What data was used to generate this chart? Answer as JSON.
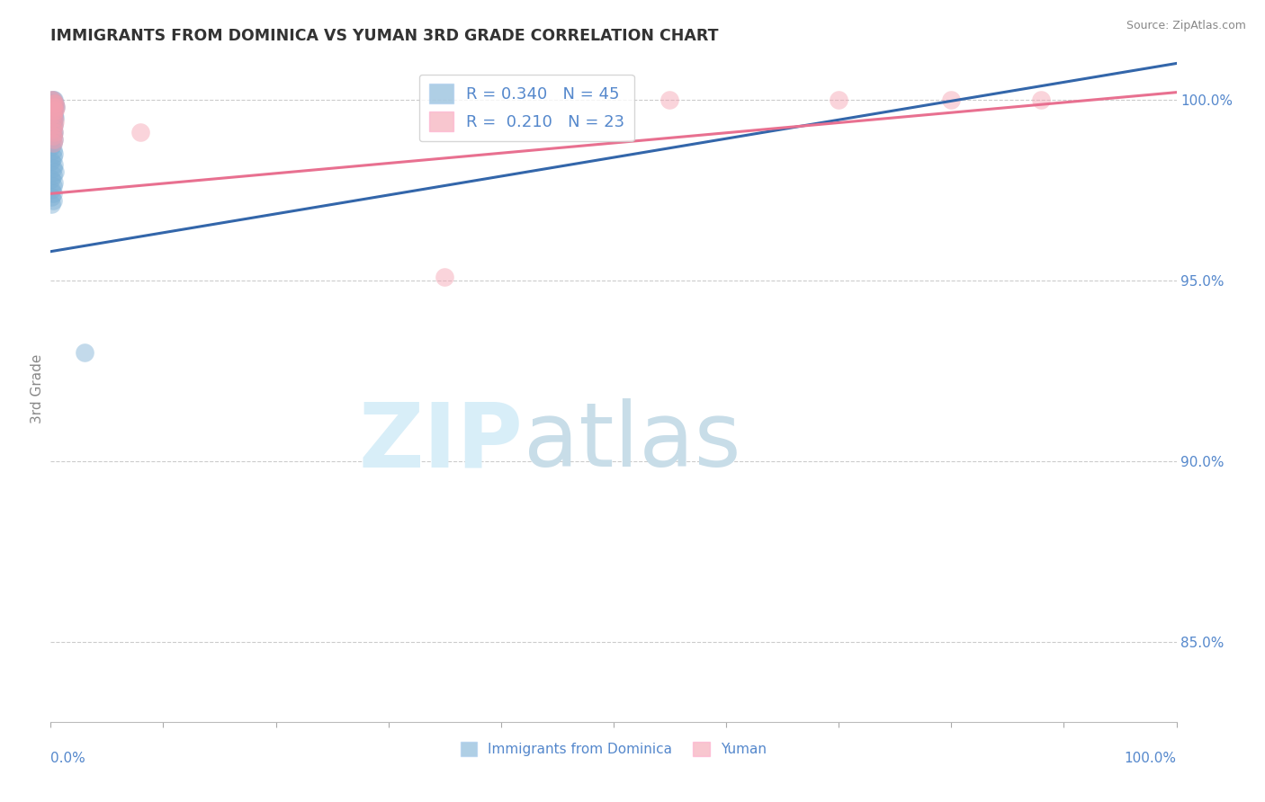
{
  "title": "IMMIGRANTS FROM DOMINICA VS YUMAN 3RD GRADE CORRELATION CHART",
  "source": "Source: ZipAtlas.com",
  "ylabel": "3rd Grade",
  "right_yticks": [
    0.85,
    0.9,
    0.95,
    1.0
  ],
  "right_ylabels": [
    "85.0%",
    "90.0%",
    "95.0%",
    "100.0%"
  ],
  "legend_blue_r": "0.340",
  "legend_blue_n": "45",
  "legend_pink_r": "0.210",
  "legend_pink_n": "23",
  "blue_color": "#7BAFD4",
  "pink_color": "#F4A0B0",
  "blue_line_color": "#3366AA",
  "pink_line_color": "#E87090",
  "background_color": "#FFFFFF",
  "xlim": [
    0.0,
    1.0
  ],
  "ylim": [
    0.828,
    1.012
  ],
  "blue_scatter_x": [
    0.001,
    0.001,
    0.002,
    0.002,
    0.003,
    0.003,
    0.003,
    0.004,
    0.004,
    0.005,
    0.001,
    0.002,
    0.002,
    0.003,
    0.003,
    0.004,
    0.001,
    0.002,
    0.003,
    0.002,
    0.001,
    0.002,
    0.003,
    0.002,
    0.001,
    0.003,
    0.002,
    0.001,
    0.002,
    0.003,
    0.002,
    0.001,
    0.003,
    0.002,
    0.004,
    0.002,
    0.001,
    0.003,
    0.002,
    0.001,
    0.002,
    0.001,
    0.002,
    0.001,
    0.03
  ],
  "blue_scatter_y": [
    1.0,
    0.999,
    1.0,
    0.999,
    1.0,
    0.999,
    0.998,
    0.999,
    0.998,
    0.998,
    0.997,
    0.997,
    0.996,
    0.996,
    0.995,
    0.995,
    0.994,
    0.994,
    0.993,
    0.993,
    0.992,
    0.991,
    0.991,
    0.99,
    0.989,
    0.989,
    0.988,
    0.987,
    0.986,
    0.985,
    0.984,
    0.983,
    0.982,
    0.981,
    0.98,
    0.979,
    0.978,
    0.977,
    0.976,
    0.975,
    0.974,
    0.973,
    0.972,
    0.971,
    0.93
  ],
  "pink_scatter_x": [
    0.001,
    0.002,
    0.003,
    0.004,
    0.005,
    0.002,
    0.003,
    0.004,
    0.002,
    0.003,
    0.004,
    0.003,
    0.002,
    0.003,
    0.002,
    0.003,
    0.002,
    0.08,
    0.35,
    0.55,
    0.7,
    0.8,
    0.88
  ],
  "pink_scatter_y": [
    1.0,
    1.0,
    0.999,
    0.999,
    0.998,
    0.998,
    0.997,
    0.997,
    0.996,
    0.995,
    0.994,
    0.993,
    0.992,
    0.991,
    0.99,
    0.989,
    0.988,
    0.991,
    0.951,
    1.0,
    1.0,
    1.0,
    1.0
  ],
  "blue_trendline_x": [
    0.0,
    1.0
  ],
  "blue_trendline_y": [
    0.958,
    1.01
  ],
  "pink_trendline_x": [
    0.0,
    1.0
  ],
  "pink_trendline_y": [
    0.974,
    1.002
  ]
}
